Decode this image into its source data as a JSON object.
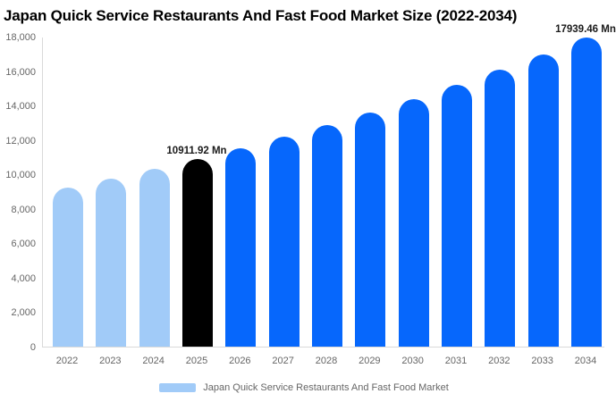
{
  "title": "Japan Quick Service Restaurants And Fast Food Market Size (2022-2034)",
  "colors": {
    "bar_historical": "#A1CBF8",
    "bar_highlight": "#000000",
    "bar_forecast": "#0667FC",
    "axis_line": "#d9d9d9",
    "tick_text": "#666666",
    "value_label_text": "#1a1a1a"
  },
  "chart_data": {
    "type": "bar",
    "title": "Japan Quick Service Restaurants And Fast Food Market Size (2022-2034)",
    "xlabel": "",
    "ylabel": "",
    "ylim": [
      0,
      18000
    ],
    "grid": false,
    "categories": [
      "2022",
      "2023",
      "2024",
      "2025",
      "2026",
      "2027",
      "2028",
      "2029",
      "2030",
      "2031",
      "2032",
      "2033",
      "2034"
    ],
    "values": [
      9246,
      9771,
      10326,
      10911.92,
      11532,
      12186,
      12878,
      13610,
      14383,
      15199,
      16062,
      16975,
      17939.46
    ],
    "bar_roles": [
      "historical",
      "historical",
      "historical",
      "highlight",
      "forecast",
      "forecast",
      "forecast",
      "forecast",
      "forecast",
      "forecast",
      "forecast",
      "forecast",
      "forecast"
    ],
    "yticks": [
      "0",
      "2,000",
      "4,000",
      "6,000",
      "8,000",
      "10,000",
      "12,000",
      "14,000",
      "16,000",
      "18,000"
    ],
    "point_labels": [
      {
        "category": "2025",
        "text": "10911.92 Mn"
      },
      {
        "category": "2034",
        "text": "17939.46 Mn"
      }
    ],
    "legend": {
      "position": "bottom",
      "label": "Japan Quick Service Restaurants And Fast Food Market"
    }
  }
}
